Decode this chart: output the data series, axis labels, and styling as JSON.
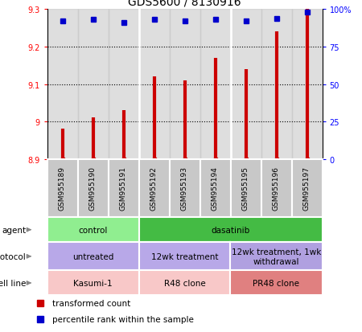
{
  "title": "GDS5600 / 8130916",
  "samples": [
    "GSM955189",
    "GSM955190",
    "GSM955191",
    "GSM955192",
    "GSM955193",
    "GSM955194",
    "GSM955195",
    "GSM955196",
    "GSM955197"
  ],
  "bar_values": [
    8.98,
    9.01,
    9.03,
    9.12,
    9.11,
    9.17,
    9.14,
    9.24,
    9.3
  ],
  "bar_base": 8.9,
  "dot_values": [
    92,
    93,
    91,
    93,
    92,
    93,
    92,
    94,
    98
  ],
  "ylim": [
    8.9,
    9.3
  ],
  "yticks": [
    8.9,
    9.0,
    9.1,
    9.2,
    9.3
  ],
  "ytick_labels": [
    "8.9",
    "9",
    "9.1",
    "9.2",
    "9.3"
  ],
  "y2lim": [
    0,
    100
  ],
  "y2ticks": [
    0,
    25,
    50,
    75,
    100
  ],
  "y2tick_labels": [
    "0",
    "25",
    "50",
    "75",
    "100%"
  ],
  "bar_color": "#cc0000",
  "dot_color": "#0000cc",
  "agent_groups": [
    {
      "label": "control",
      "start": 0,
      "end": 3,
      "color": "#90ee90"
    },
    {
      "label": "dasatinib",
      "start": 3,
      "end": 9,
      "color": "#44bb44"
    }
  ],
  "protocol_groups": [
    {
      "label": "untreated",
      "start": 0,
      "end": 3,
      "color": "#b8a8e8"
    },
    {
      "label": "12wk treatment",
      "start": 3,
      "end": 6,
      "color": "#b8a8e8"
    },
    {
      "label": "12wk treatment, 1wk\nwithdrawal",
      "start": 6,
      "end": 9,
      "color": "#b0a0e0"
    }
  ],
  "cellline_groups": [
    {
      "label": "Kasumi-1",
      "start": 0,
      "end": 3,
      "color": "#f8c8c8"
    },
    {
      "label": "R48 clone",
      "start": 3,
      "end": 6,
      "color": "#f8c8c8"
    },
    {
      "label": "PR48 clone",
      "start": 6,
      "end": 9,
      "color": "#e08080"
    }
  ],
  "legend_items": [
    {
      "label": "transformed count",
      "color": "#cc0000"
    },
    {
      "label": "percentile rank within the sample",
      "color": "#0000cc"
    }
  ],
  "sample_bg_color": "#c8c8c8",
  "grid_color": "#000000",
  "row_label_color": "#888888"
}
